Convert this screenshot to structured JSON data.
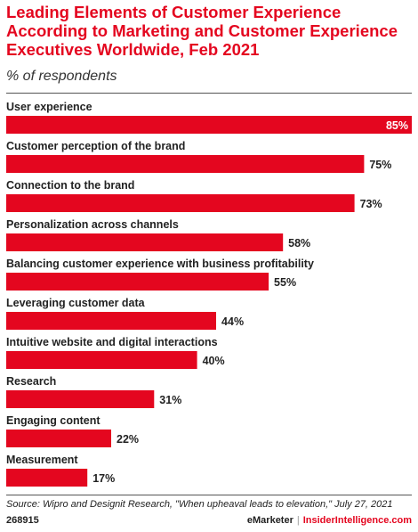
{
  "chart_data": {
    "type": "bar",
    "orientation": "horizontal",
    "title": "Leading Elements of Customer Experience According to Marketing and Customer Experience Executives Worldwide, Feb 2021",
    "subtitle": "% of respondents",
    "categories": [
      "User experience",
      "Customer perception of the brand",
      "Connection to the brand",
      "Personalization across channels",
      "Balancing customer experience with business profitability",
      "Leveraging customer data",
      "Intuitive website and digital interactions",
      "Research",
      "Engaging content",
      "Measurement"
    ],
    "values": [
      85,
      75,
      73,
      58,
      55,
      44,
      40,
      31,
      22,
      17
    ],
    "value_labels": [
      "85%",
      "75%",
      "73%",
      "58%",
      "55%",
      "44%",
      "40%",
      "31%",
      "22%",
      "17%"
    ],
    "bar_color": "#e4061f",
    "xlim": [
      0,
      85
    ],
    "grid": false,
    "legend": "none"
  },
  "footer": {
    "source": "Source: Wipro and Designit Research, \"When upheaval leads to elevation,\" July 27, 2021",
    "chart_id": "268915",
    "brand_primary": "eMarketer",
    "brand_separator": "|",
    "brand_secondary": "InsiderIntelligence.com"
  }
}
